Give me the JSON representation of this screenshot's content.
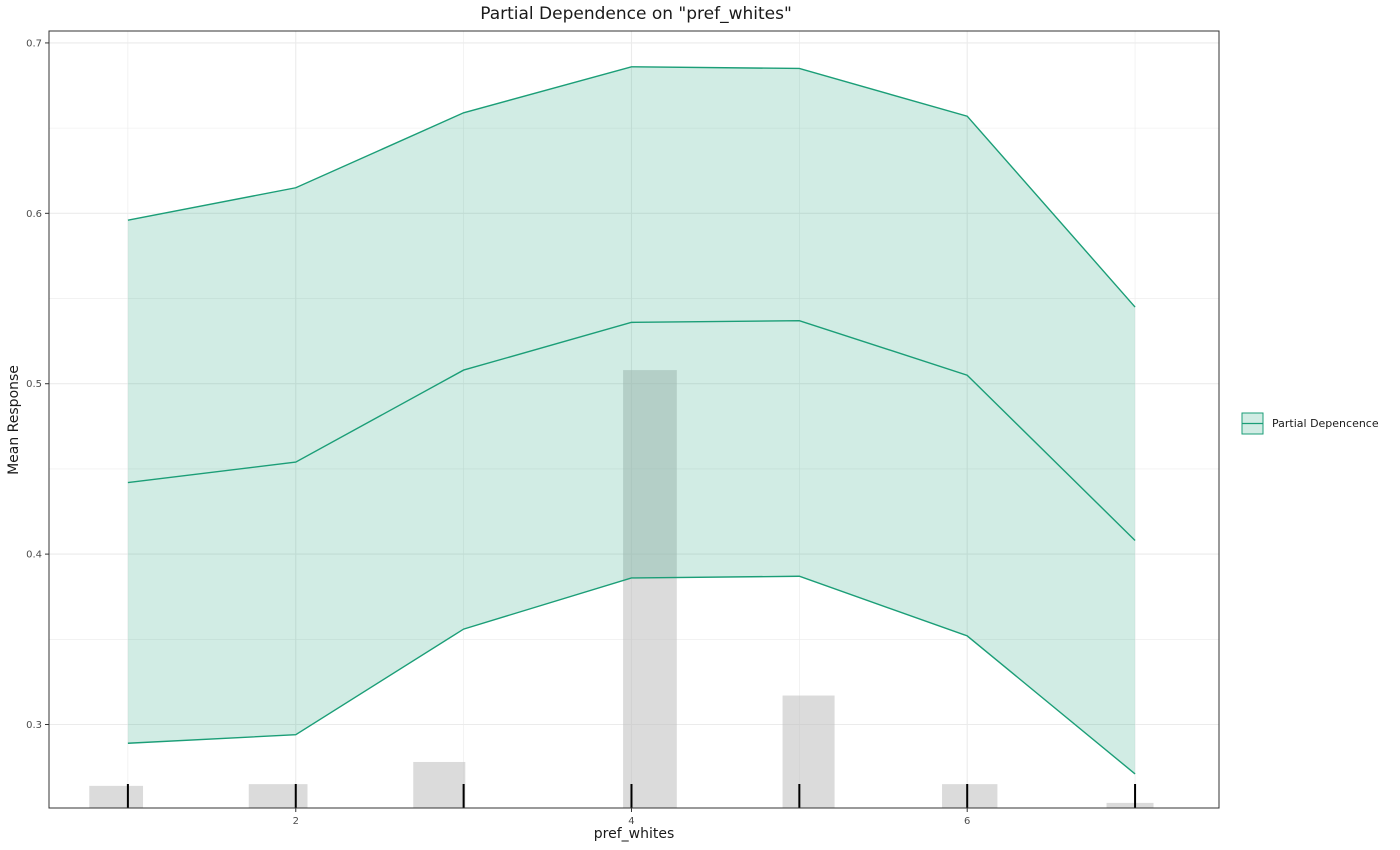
{
  "chart_data": {
    "type": "line",
    "title": "Partial Dependence on \"pref_whites\"",
    "xlabel": "pref_whites",
    "ylabel": "Mean Response",
    "xlim": [
      0.53,
      7.5
    ],
    "ylim": [
      0.251,
      0.707
    ],
    "x_ticks": [
      2,
      4,
      6
    ],
    "y_ticks": [
      0.3,
      0.4,
      0.5,
      0.6,
      0.7
    ],
    "x_tick_labels": [
      "2",
      "4",
      "6"
    ],
    "y_tick_labels": [
      "0.3",
      "0.4",
      "0.5",
      "0.6",
      "0.7"
    ],
    "grid": true,
    "legend": {
      "position": "right",
      "entries": [
        "Partial Depencence"
      ]
    },
    "colors": {
      "line": "#1b9e77",
      "band_fill": "#1b9e77",
      "histogram": "#bebebe",
      "rug": "#000000",
      "panel_border": "#333333",
      "grid": "#ebebeb"
    },
    "series": [
      {
        "name": "Partial Depencence",
        "x": [
          1,
          2,
          3,
          4,
          5,
          6,
          7
        ],
        "y": [
          0.442,
          0.454,
          0.508,
          0.536,
          0.537,
          0.505,
          0.408
        ]
      }
    ],
    "band": {
      "x": [
        1,
        2,
        3,
        4,
        5,
        6,
        7
      ],
      "upper": [
        0.596,
        0.615,
        0.659,
        0.686,
        0.685,
        0.657,
        0.545
      ],
      "lower": [
        0.289,
        0.294,
        0.356,
        0.386,
        0.387,
        0.352,
        0.271
      ]
    },
    "histogram": {
      "bins": [
        {
          "from": 0.77,
          "to": 1.09,
          "y": 0.264
        },
        {
          "from": 1.72,
          "to": 2.07,
          "y": 0.265
        },
        {
          "from": 2.7,
          "to": 3.01,
          "y": 0.278
        },
        {
          "from": 3.95,
          "to": 4.27,
          "y": 0.508
        },
        {
          "from": 4.9,
          "to": 5.21,
          "y": 0.317
        },
        {
          "from": 5.85,
          "to": 6.18,
          "y": 0.265
        },
        {
          "from": 6.83,
          "to": 7.11,
          "y": 0.254
        }
      ]
    },
    "rug": [
      1,
      2,
      3,
      4,
      5,
      6,
      7
    ]
  }
}
